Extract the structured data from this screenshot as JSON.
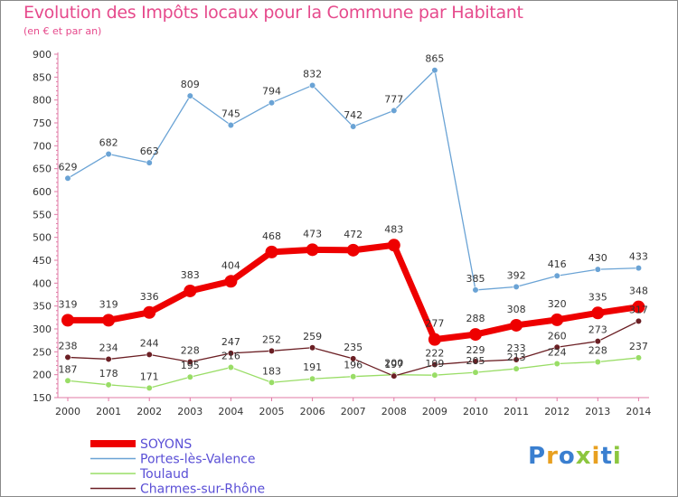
{
  "header": {
    "title": "Evolution des Impôts locaux pour la Commune par Habitant",
    "subtitle": "(en € et par an)"
  },
  "logo": {
    "text": "Proxiti"
  },
  "chart_data": {
    "type": "line",
    "title": "Evolution des Impôts locaux pour la Commune par Habitant",
    "subtitle": "(en € et par an)",
    "xlabel": "",
    "ylabel": "",
    "ylim": [
      150,
      900
    ],
    "yticks": [
      150,
      200,
      250,
      300,
      350,
      400,
      450,
      500,
      550,
      600,
      650,
      700,
      750,
      800,
      850,
      900
    ],
    "x": [
      "2000",
      "2001",
      "2002",
      "2003",
      "2004",
      "2005",
      "2006",
      "2007",
      "2008",
      "2009",
      "2010",
      "2011",
      "2012",
      "2013",
      "2014"
    ],
    "grid": false,
    "legend_position": "bottom-left",
    "series": [
      {
        "name": "SOYONS",
        "color": "#ee0000",
        "values": [
          319,
          319,
          336,
          383,
          404,
          468,
          473,
          472,
          483,
          277,
          288,
          308,
          320,
          335,
          348
        ]
      },
      {
        "name": "Portes-lès-Valence",
        "color": "#6aa3d5",
        "values": [
          629,
          682,
          663,
          809,
          745,
          794,
          832,
          742,
          777,
          865,
          385,
          392,
          416,
          430,
          433
        ]
      },
      {
        "name": "Toulaud",
        "color": "#99dd66",
        "values": [
          187,
          178,
          171,
          195,
          216,
          183,
          191,
          196,
          200,
          199,
          205,
          213,
          224,
          228,
          237
        ]
      },
      {
        "name": "Charmes-sur-Rhône",
        "color": "#6b1f24",
        "values": [
          238,
          234,
          244,
          228,
          247,
          252,
          259,
          235,
          197,
          222,
          229,
          233,
          260,
          273,
          317
        ]
      }
    ],
    "data_labels": {
      "SOYONS": [
        "319",
        "319",
        "336",
        "383",
        "404",
        "468",
        "473",
        "472",
        "483",
        "277",
        "288",
        "308",
        "320",
        "335",
        "348"
      ],
      "Portes-lès-Valence": [
        "629",
        "682",
        "663",
        "809",
        "745",
        "794",
        "832",
        "742",
        "777",
        "865",
        "385",
        "392",
        "416",
        "430",
        "433"
      ],
      "Toulaud": [
        "187",
        "178",
        "171",
        "195",
        "216",
        "183",
        "191",
        "196",
        "200",
        "199",
        "205",
        "213",
        "224",
        "228",
        "237"
      ],
      "Charmes-sur-Rhône": [
        "238",
        "234",
        "244",
        "228",
        "247",
        "252",
        "259",
        "235",
        "197",
        "222",
        "229",
        "233",
        "260",
        "273",
        "317"
      ]
    }
  }
}
